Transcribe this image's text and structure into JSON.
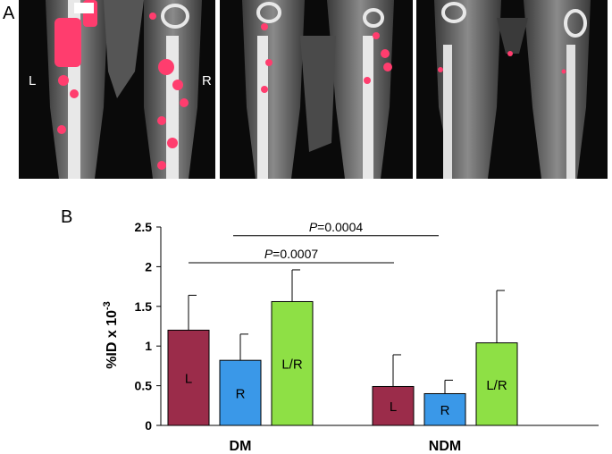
{
  "panel_a": {
    "letter": "A",
    "left_side_label": "L",
    "right_side_label": "R"
  },
  "panel_b": {
    "letter": "B"
  },
  "chart_data": {
    "type": "bar",
    "categories": [
      "DM",
      "NDM"
    ],
    "series": [
      {
        "name": "L",
        "values": [
          1.2,
          0.49
        ],
        "errors": [
          0.44,
          0.4
        ],
        "color": "#9b2c4a"
      },
      {
        "name": "R",
        "values": [
          0.82,
          0.4
        ],
        "errors": [
          0.33,
          0.17
        ],
        "color": "#3a98e8"
      },
      {
        "name": "L/R",
        "values": [
          1.56,
          1.04
        ],
        "errors": [
          0.4,
          0.66
        ],
        "color": "#8ee045"
      }
    ],
    "ylabel_main": "%ID x 10",
    "ylabel_sup": "-3",
    "ylim": [
      0,
      2.5
    ],
    "yticks": [
      "0",
      "0.5",
      "1",
      "1.5",
      "2",
      "2.5"
    ],
    "significance": [
      {
        "label_italic": "P",
        "label_rest": "=0.0007",
        "from_group": 0,
        "to_group": 1,
        "height": 2.05
      },
      {
        "label_italic": "P",
        "label_rest": "=0.0004",
        "from_group": 0,
        "to_group": 1,
        "height": 2.39
      }
    ],
    "legend": "none",
    "grid": false
  }
}
